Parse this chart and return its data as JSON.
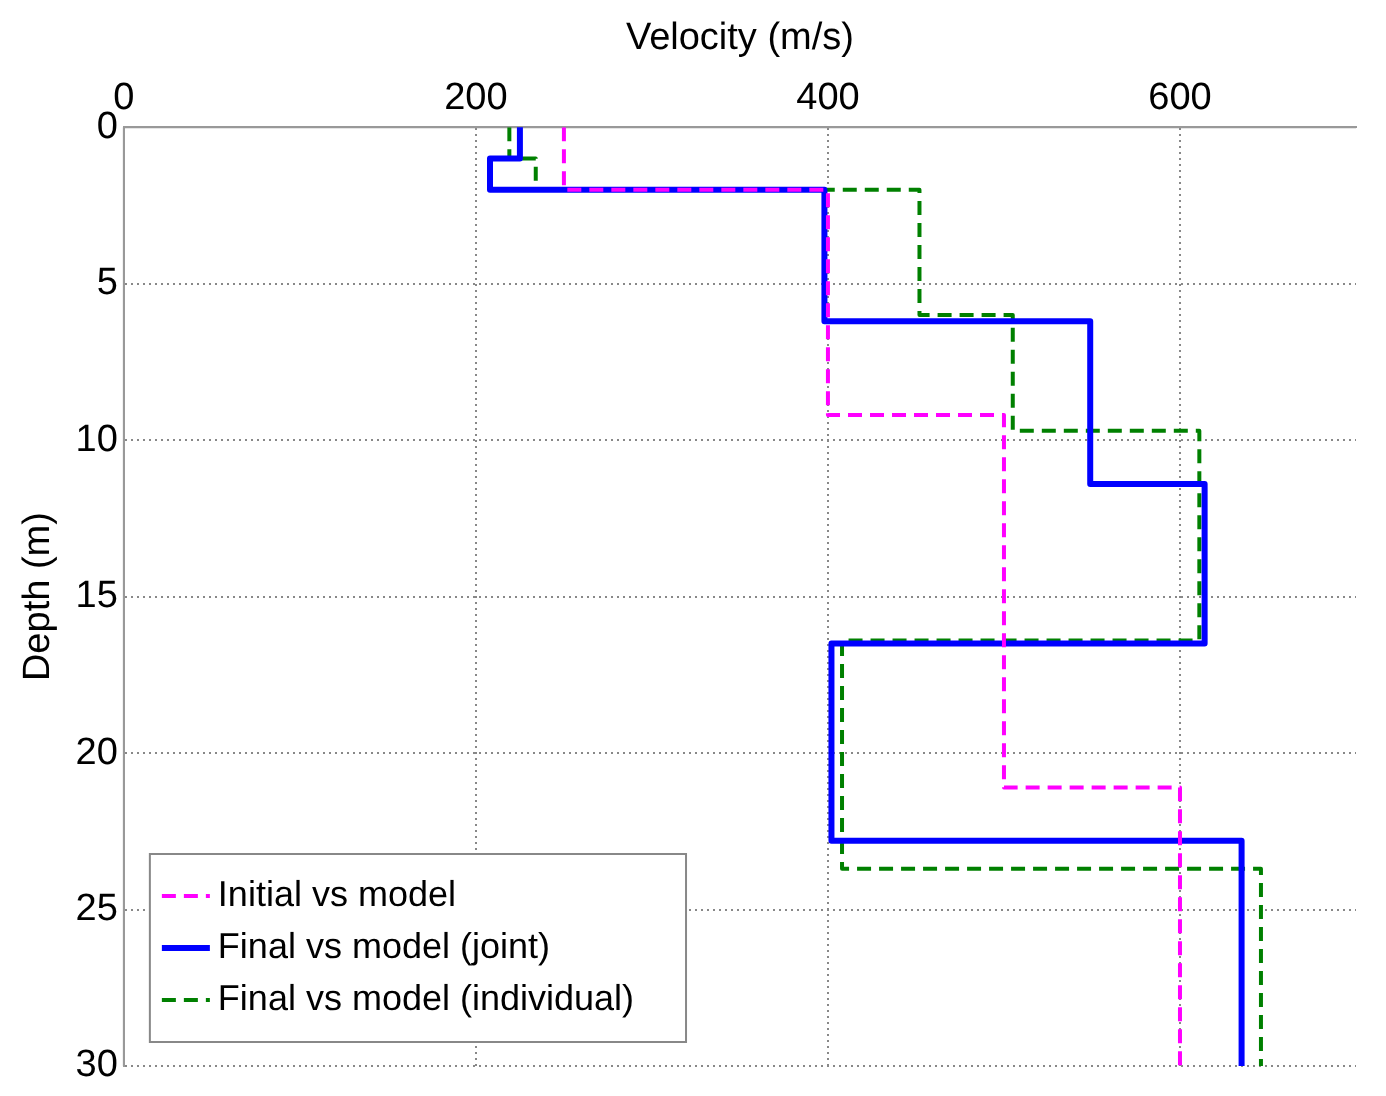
{
  "chart_data": {
    "type": "line",
    "xlabel": "Velocity (m/s)",
    "ylabel": "Depth (m)",
    "xlim": [
      0,
      700
    ],
    "xticks": [
      0,
      200,
      400,
      600
    ],
    "ylim": [
      30,
      0
    ],
    "yticks": [
      0,
      5,
      10,
      15,
      20,
      25,
      30
    ],
    "grid": true,
    "legend": "bottom left",
    "marker": "none",
    "series": [
      {
        "name": "Initial vs model",
        "color": "#ff00ff",
        "line_style": "dashed",
        "x": [
          250,
          250,
          400,
          400,
          500,
          500,
          600,
          600
        ],
        "values": [
          0,
          2,
          2,
          9.2,
          9.2,
          21.1,
          21.1,
          30
        ]
      },
      {
        "name": "Final vs model (joint)",
        "color": "#0000ff",
        "line_style": "solid",
        "x": [
          225,
          225,
          208,
          208,
          398,
          398,
          549,
          549,
          614,
          614,
          402,
          402,
          635,
          635
        ],
        "values": [
          0,
          1,
          1,
          2,
          2,
          6.2,
          6.2,
          11.4,
          11.4,
          16.5,
          16.5,
          22.8,
          22.8,
          30
        ]
      },
      {
        "name": "Final vs model (individual)",
        "color": "#008000",
        "line_style": "dashed",
        "x": [
          219,
          219,
          234,
          234,
          452,
          452,
          505,
          505,
          611,
          611,
          408,
          408,
          646,
          646
        ],
        "values": [
          0,
          1,
          1,
          2,
          2,
          6,
          6,
          9.7,
          9.7,
          16.4,
          16.4,
          23.7,
          23.7,
          30
        ]
      }
    ]
  }
}
